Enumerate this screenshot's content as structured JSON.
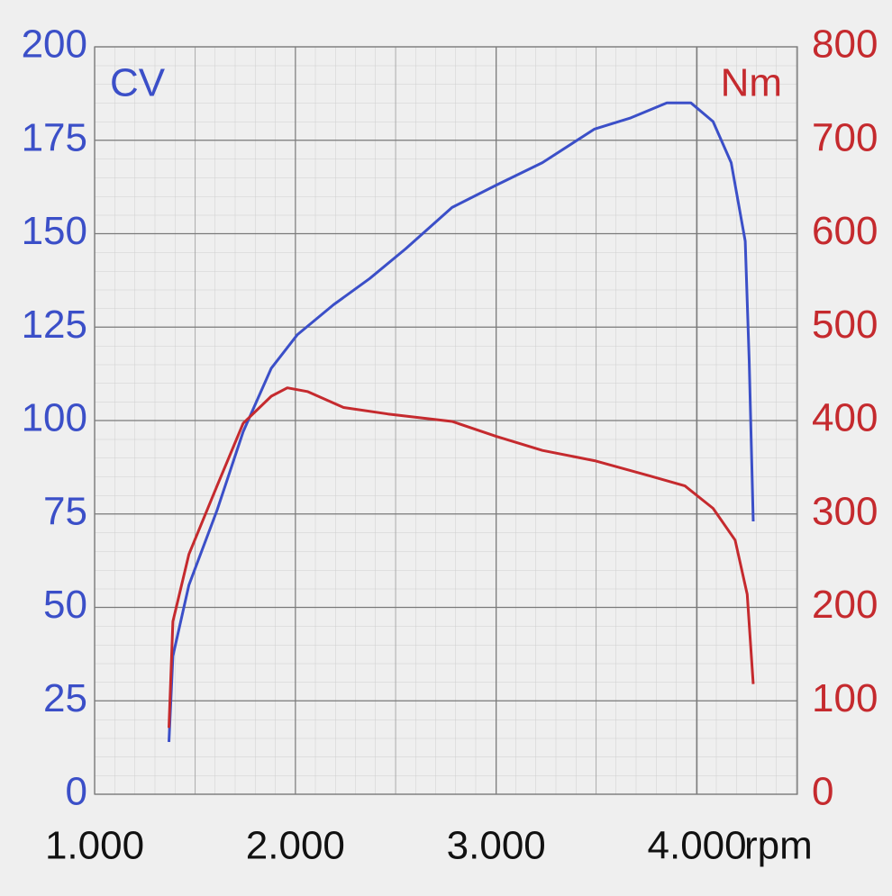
{
  "chart_data": {
    "type": "line",
    "y_label": "CV",
    "y2_label": "Nm",
    "x_label": "rpm",
    "xlim": [
      1000,
      4500
    ],
    "xticks": [
      {
        "value": 1000,
        "label": "1.000"
      },
      {
        "value": 2000,
        "label": "2.000"
      },
      {
        "value": 3000,
        "label": "3.000"
      },
      {
        "value": 4000,
        "label": "4.000"
      }
    ],
    "ylim": [
      0,
      200
    ],
    "yticks": [
      0,
      25,
      50,
      75,
      100,
      125,
      150,
      175,
      200
    ],
    "y2lim": [
      0,
      800
    ],
    "y2ticks": [
      0,
      100,
      200,
      300,
      400,
      500,
      600,
      700,
      800
    ],
    "grid": true,
    "y_color": "#3b4fc8",
    "y2_color": "#c52a2e",
    "series": [
      {
        "name": "CV",
        "color": "#3b4fc8",
        "x": [
          1370,
          1390,
          1470,
          1610,
          1740,
          1880,
          2010,
          2190,
          2370,
          2550,
          2780,
          3000,
          3230,
          3490,
          3670,
          3850,
          3970,
          4080,
          4170,
          4240,
          4260,
          4280
        ],
        "values": [
          14,
          37,
          56,
          76,
          97,
          114,
          123,
          131,
          138,
          146,
          157,
          163,
          169,
          178,
          181,
          185,
          185,
          180,
          169,
          148,
          116,
          73
        ]
      },
      {
        "name": "Nm",
        "color": "#c52a2e",
        "axis": "y2",
        "x": [
          1370,
          1390,
          1470,
          1610,
          1740,
          1880,
          1960,
          2060,
          2240,
          2460,
          2780,
          3000,
          3230,
          3490,
          3760,
          3940,
          4080,
          4190,
          4250,
          4280
        ],
        "values": [
          71,
          185,
          257,
          330,
          397,
          426,
          435,
          431,
          414,
          407,
          399,
          383,
          368,
          357,
          341,
          330,
          306,
          272,
          214,
          118
        ]
      }
    ]
  }
}
